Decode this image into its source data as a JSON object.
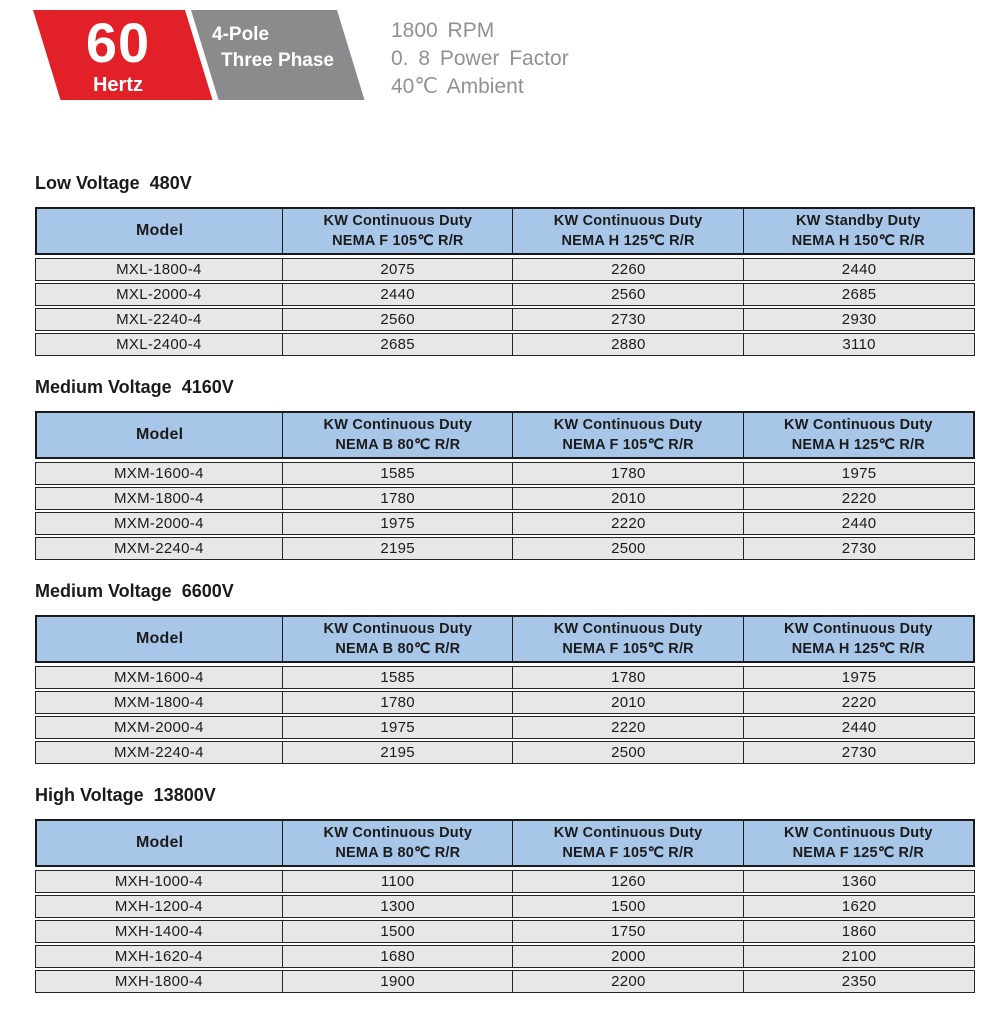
{
  "badge": {
    "frequency_value": "60",
    "frequency_unit": "Hertz",
    "pole_line1": "4-Pole",
    "pole_line2": "Three Phase",
    "specs": [
      "1800 RPM",
      "0. 8 Power Factor",
      "40℃ Ambient"
    ],
    "colors": {
      "red": "#e22027",
      "gray": "#8b8b8d",
      "spec_text": "#919191"
    }
  },
  "table_style_colors": {
    "header_blue": "#a8c6e8",
    "row_gray": "#e7e7e7",
    "border": "#1b1b1b"
  },
  "tables": [
    {
      "title_name": "Low Voltage",
      "title_voltage": "480V",
      "model_header": "Model",
      "col_headers": [
        {
          "line1": "KW Continuous Duty",
          "line2": "NEMA F 105℃ R/R"
        },
        {
          "line1": "KW Continuous Duty",
          "line2": "NEMA H 125℃ R/R"
        },
        {
          "line1": "KW Standby Duty",
          "line2": "NEMA H 150℃ R/R"
        }
      ],
      "rows": [
        {
          "model": "MXL-1800-4",
          "v1": "2075",
          "v2": "2260",
          "v3": "2440"
        },
        {
          "model": "MXL-2000-4",
          "v1": "2440",
          "v2": "2560",
          "v3": "2685"
        },
        {
          "model": "MXL-2240-4",
          "v1": "2560",
          "v2": "2730",
          "v3": "2930"
        },
        {
          "model": "MXL-2400-4",
          "v1": "2685",
          "v2": "2880",
          "v3": "3110"
        }
      ]
    },
    {
      "title_name": "Medium Voltage",
      "title_voltage": "4160V",
      "model_header": "Model",
      "col_headers": [
        {
          "line1": "KW Continuous Duty",
          "line2": "NEMA B 80℃ R/R"
        },
        {
          "line1": "KW Continuous Duty",
          "line2": "NEMA F 105℃ R/R"
        },
        {
          "line1": "KW Continuous Duty",
          "line2": "NEMA H 125℃ R/R"
        }
      ],
      "rows": [
        {
          "model": "MXM-1600-4",
          "v1": "1585",
          "v2": "1780",
          "v3": "1975"
        },
        {
          "model": "MXM-1800-4",
          "v1": "1780",
          "v2": "2010",
          "v3": "2220"
        },
        {
          "model": "MXM-2000-4",
          "v1": "1975",
          "v2": "2220",
          "v3": "2440"
        },
        {
          "model": "MXM-2240-4",
          "v1": "2195",
          "v2": "2500",
          "v3": "2730"
        }
      ]
    },
    {
      "title_name": "Medium Voltage",
      "title_voltage": "6600V",
      "model_header": "Model",
      "col_headers": [
        {
          "line1": "KW Continuous Duty",
          "line2": "NEMA B 80℃ R/R"
        },
        {
          "line1": "KW Continuous Duty",
          "line2": "NEMA F 105℃ R/R"
        },
        {
          "line1": "KW Continuous Duty",
          "line2": "NEMA H 125℃ R/R"
        }
      ],
      "rows": [
        {
          "model": "MXM-1600-4",
          "v1": "1585",
          "v2": "1780",
          "v3": "1975"
        },
        {
          "model": "MXM-1800-4",
          "v1": "1780",
          "v2": "2010",
          "v3": "2220"
        },
        {
          "model": "MXM-2000-4",
          "v1": "1975",
          "v2": "2220",
          "v3": "2440"
        },
        {
          "model": "MXM-2240-4",
          "v1": "2195",
          "v2": "2500",
          "v3": "2730"
        }
      ]
    },
    {
      "title_name": "High Voltage",
      "title_voltage": "13800V",
      "model_header": "Model",
      "col_headers": [
        {
          "line1": "KW Continuous Duty",
          "line2": "NEMA B 80℃ R/R"
        },
        {
          "line1": "KW Continuous Duty",
          "line2": "NEMA F 105℃ R/R"
        },
        {
          "line1": "KW Continuous Duty",
          "line2": "NEMA F 125℃ R/R"
        }
      ],
      "rows": [
        {
          "model": "MXH-1000-4",
          "v1": "1100",
          "v2": "1260",
          "v3": "1360"
        },
        {
          "model": "MXH-1200-4",
          "v1": "1300",
          "v2": "1500",
          "v3": "1620"
        },
        {
          "model": "MXH-1400-4",
          "v1": "1500",
          "v2": "1750",
          "v3": "1860"
        },
        {
          "model": "MXH-1620-4",
          "v1": "1680",
          "v2": "2000",
          "v3": "2100"
        },
        {
          "model": "MXH-1800-4",
          "v1": "1900",
          "v2": "2200",
          "v3": "2350"
        }
      ]
    }
  ]
}
